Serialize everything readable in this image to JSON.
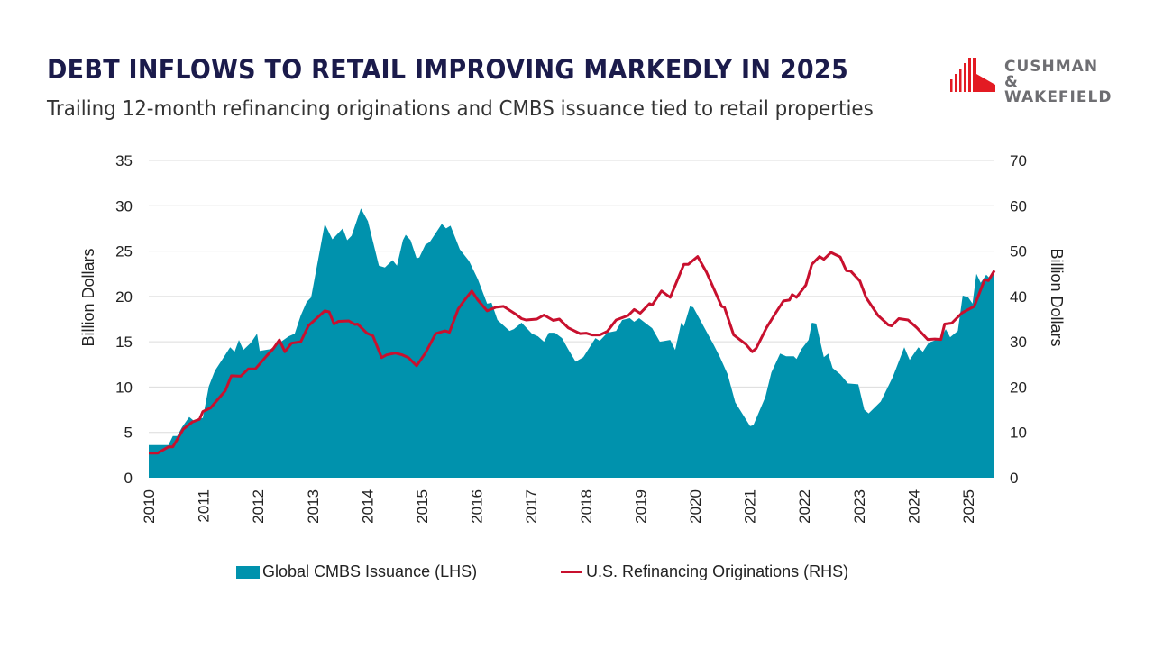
{
  "header": {
    "title": "DEBT INFLOWS TO RETAIL IMPROVING MARKEDLY IN 2025",
    "subtitle": "Trailing 12-month refinancing originations and CMBS issuance tied to retail properties",
    "logo_text": "CUSHMAN & WAKEFIELD",
    "logo_line1": "CUSHMAN &",
    "logo_line2": "WAKEFIELD"
  },
  "colors": {
    "area": "#0092ad",
    "line": "#c8102e",
    "title": "#1b1b4b",
    "grid": "#dcdcdc"
  },
  "chart_data": {
    "type": "area+line",
    "title": "DEBT INFLOWS TO RETAIL IMPROVING MARKEDLY IN 2025",
    "subtitle": "Trailing 12-month refinancing originations and CMBS issuance tied to retail properties",
    "xlabel": "",
    "ylabel_left": "Billion Dollars",
    "ylabel_right": "Billion Dollars",
    "x_ticks": [
      "2010",
      "2011",
      "2012",
      "2013",
      "2014",
      "2015",
      "2016",
      "2017",
      "2018",
      "2019",
      "2020",
      "2021",
      "2022",
      "2023",
      "2024",
      "2025"
    ],
    "xlim": [
      2010,
      2025.47
    ],
    "ylim_left": [
      0,
      35
    ],
    "ylim_right": [
      0,
      70
    ],
    "y_ticks_left": [
      "0",
      "5",
      "10",
      "15",
      "20",
      "25",
      "30",
      "35"
    ],
    "y_ticks_right": [
      "0",
      "10",
      "20",
      "30",
      "40",
      "50",
      "60",
      "70"
    ],
    "grid": true,
    "legend_position": "bottom",
    "series": [
      {
        "name": "Global CMBS Issuance (LHS)",
        "type": "area",
        "axis": "left",
        "points": [
          [
            2010.02,
            3.6
          ],
          [
            2010.36,
            3.6
          ],
          [
            2010.44,
            4.6
          ],
          [
            2010.52,
            4.6
          ],
          [
            2010.61,
            5.6
          ],
          [
            2010.74,
            6.7
          ],
          [
            2010.82,
            6.3
          ],
          [
            2010.99,
            6.6
          ],
          [
            2011.1,
            10.1
          ],
          [
            2011.21,
            11.8
          ],
          [
            2011.35,
            13.1
          ],
          [
            2011.49,
            14.4
          ],
          [
            2011.57,
            13.9
          ],
          [
            2011.65,
            15.2
          ],
          [
            2011.73,
            14.1
          ],
          [
            2011.87,
            14.9
          ],
          [
            2011.98,
            15.9
          ],
          [
            2012.03,
            14.0
          ],
          [
            2012.23,
            14.2
          ],
          [
            2012.56,
            15.6
          ],
          [
            2012.67,
            15.9
          ],
          [
            2012.78,
            17.9
          ],
          [
            2012.89,
            19.4
          ],
          [
            2012.97,
            19.9
          ],
          [
            2013.22,
            28.0
          ],
          [
            2013.36,
            26.3
          ],
          [
            2013.55,
            27.5
          ],
          [
            2013.63,
            26.2
          ],
          [
            2013.71,
            26.7
          ],
          [
            2013.88,
            29.7
          ],
          [
            2014.01,
            28.3
          ],
          [
            2014.21,
            23.4
          ],
          [
            2014.32,
            23.2
          ],
          [
            2014.46,
            24.0
          ],
          [
            2014.54,
            23.4
          ],
          [
            2014.65,
            26.2
          ],
          [
            2014.7,
            26.8
          ],
          [
            2014.79,
            26.2
          ],
          [
            2014.9,
            24.2
          ],
          [
            2014.95,
            24.3
          ],
          [
            2015.06,
            25.7
          ],
          [
            2015.14,
            26.0
          ],
          [
            2015.36,
            28.0
          ],
          [
            2015.44,
            27.5
          ],
          [
            2015.52,
            27.8
          ],
          [
            2015.69,
            25.2
          ],
          [
            2015.86,
            23.9
          ],
          [
            2016.02,
            21.9
          ],
          [
            2016.19,
            19.2
          ],
          [
            2016.27,
            19.3
          ],
          [
            2016.38,
            17.4
          ],
          [
            2016.6,
            16.2
          ],
          [
            2016.68,
            16.4
          ],
          [
            2016.82,
            17.1
          ],
          [
            2017.01,
            15.9
          ],
          [
            2017.12,
            15.6
          ],
          [
            2017.23,
            15.0
          ],
          [
            2017.32,
            16.0
          ],
          [
            2017.43,
            16.0
          ],
          [
            2017.56,
            15.4
          ],
          [
            2017.67,
            14.2
          ],
          [
            2017.81,
            12.8
          ],
          [
            2017.95,
            13.3
          ],
          [
            2018.17,
            15.4
          ],
          [
            2018.25,
            15.1
          ],
          [
            2018.39,
            16.0
          ],
          [
            2018.55,
            16.2
          ],
          [
            2018.66,
            17.4
          ],
          [
            2018.8,
            17.6
          ],
          [
            2018.88,
            17.2
          ],
          [
            2018.97,
            17.6
          ],
          [
            2019.21,
            16.5
          ],
          [
            2019.35,
            15.0
          ],
          [
            2019.54,
            15.2
          ],
          [
            2019.63,
            14.1
          ],
          [
            2019.74,
            17.1
          ],
          [
            2019.79,
            16.7
          ],
          [
            2019.9,
            18.9
          ],
          [
            2019.96,
            18.8
          ],
          [
            2020.34,
            14.6
          ],
          [
            2020.45,
            13.3
          ],
          [
            2020.59,
            11.4
          ],
          [
            2020.73,
            8.3
          ],
          [
            2021.0,
            5.7
          ],
          [
            2021.06,
            5.8
          ],
          [
            2021.28,
            8.9
          ],
          [
            2021.39,
            11.6
          ],
          [
            2021.55,
            13.7
          ],
          [
            2021.66,
            13.4
          ],
          [
            2021.8,
            13.4
          ],
          [
            2021.85,
            13.1
          ],
          [
            2021.94,
            14.2
          ],
          [
            2022.07,
            15.2
          ],
          [
            2022.13,
            17.1
          ],
          [
            2022.21,
            17.0
          ],
          [
            2022.35,
            13.3
          ],
          [
            2022.43,
            13.7
          ],
          [
            2022.51,
            12.1
          ],
          [
            2022.65,
            11.4
          ],
          [
            2022.79,
            10.4
          ],
          [
            2022.98,
            10.3
          ],
          [
            2023.09,
            7.5
          ],
          [
            2023.17,
            7.1
          ],
          [
            2023.39,
            8.4
          ],
          [
            2023.61,
            11.1
          ],
          [
            2023.82,
            14.4
          ],
          [
            2023.92,
            13.0
          ],
          [
            2024.08,
            14.4
          ],
          [
            2024.16,
            13.9
          ],
          [
            2024.27,
            14.9
          ],
          [
            2024.49,
            15.4
          ],
          [
            2024.58,
            16.4
          ],
          [
            2024.66,
            15.5
          ],
          [
            2024.8,
            16.2
          ],
          [
            2024.89,
            20.1
          ],
          [
            2024.99,
            19.9
          ],
          [
            2025.07,
            19.2
          ],
          [
            2025.14,
            22.5
          ],
          [
            2025.22,
            21.5
          ],
          [
            2025.32,
            22.4
          ],
          [
            2025.4,
            21.9
          ],
          [
            2025.47,
            22.7
          ]
        ]
      },
      {
        "name": "U.S. Refinancing Originations (RHS)",
        "type": "line",
        "axis": "right",
        "points": [
          [
            2010.0,
            5.4
          ],
          [
            2010.16,
            5.4
          ],
          [
            2010.36,
            6.8
          ],
          [
            2010.44,
            6.8
          ],
          [
            2010.63,
            10.7
          ],
          [
            2010.8,
            12.3
          ],
          [
            2010.93,
            12.9
          ],
          [
            2010.99,
            14.6
          ],
          [
            2011.13,
            15.4
          ],
          [
            2011.4,
            19.2
          ],
          [
            2011.51,
            22.5
          ],
          [
            2011.68,
            22.4
          ],
          [
            2011.82,
            24.0
          ],
          [
            2011.95,
            24.0
          ],
          [
            2012.15,
            26.8
          ],
          [
            2012.28,
            28.5
          ],
          [
            2012.39,
            30.4
          ],
          [
            2012.49,
            27.8
          ],
          [
            2012.61,
            29.7
          ],
          [
            2012.78,
            30.0
          ],
          [
            2012.92,
            33.5
          ],
          [
            2013.22,
            36.8
          ],
          [
            2013.3,
            36.6
          ],
          [
            2013.39,
            33.9
          ],
          [
            2013.47,
            34.5
          ],
          [
            2013.66,
            34.6
          ],
          [
            2013.77,
            33.8
          ],
          [
            2013.82,
            33.9
          ],
          [
            2013.99,
            31.9
          ],
          [
            2014.1,
            31.3
          ],
          [
            2014.26,
            26.5
          ],
          [
            2014.35,
            27.1
          ],
          [
            2014.51,
            27.5
          ],
          [
            2014.64,
            27.1
          ],
          [
            2014.75,
            26.5
          ],
          [
            2014.9,
            24.7
          ],
          [
            2015.06,
            27.5
          ],
          [
            2015.25,
            31.8
          ],
          [
            2015.42,
            32.4
          ],
          [
            2015.5,
            32.1
          ],
          [
            2015.66,
            37.2
          ],
          [
            2015.77,
            39.1
          ],
          [
            2015.91,
            41.2
          ],
          [
            2016.02,
            39.2
          ],
          [
            2016.19,
            36.8
          ],
          [
            2016.35,
            37.6
          ],
          [
            2016.49,
            37.8
          ],
          [
            2016.71,
            36.1
          ],
          [
            2016.82,
            35.1
          ],
          [
            2016.9,
            34.8
          ],
          [
            2017.1,
            35.0
          ],
          [
            2017.23,
            35.9
          ],
          [
            2017.4,
            34.7
          ],
          [
            2017.51,
            35.0
          ],
          [
            2017.67,
            33.1
          ],
          [
            2017.89,
            31.8
          ],
          [
            2018.0,
            31.9
          ],
          [
            2018.11,
            31.5
          ],
          [
            2018.25,
            31.5
          ],
          [
            2018.39,
            32.3
          ],
          [
            2018.55,
            34.8
          ],
          [
            2018.77,
            35.8
          ],
          [
            2018.88,
            37.1
          ],
          [
            2018.99,
            36.3
          ],
          [
            2019.16,
            38.4
          ],
          [
            2019.21,
            38.1
          ],
          [
            2019.38,
            41.2
          ],
          [
            2019.54,
            39.8
          ],
          [
            2019.79,
            47.1
          ],
          [
            2019.87,
            47.1
          ],
          [
            2020.04,
            48.8
          ],
          [
            2020.2,
            45.4
          ],
          [
            2020.48,
            37.8
          ],
          [
            2020.53,
            37.6
          ],
          [
            2020.7,
            31.5
          ],
          [
            2020.92,
            29.5
          ],
          [
            2021.04,
            27.8
          ],
          [
            2021.11,
            28.5
          ],
          [
            2021.3,
            33.1
          ],
          [
            2021.47,
            36.4
          ],
          [
            2021.61,
            39.0
          ],
          [
            2021.72,
            39.2
          ],
          [
            2021.77,
            40.4
          ],
          [
            2021.85,
            39.8
          ],
          [
            2022.02,
            42.5
          ],
          [
            2022.13,
            47.1
          ],
          [
            2022.27,
            48.8
          ],
          [
            2022.35,
            48.2
          ],
          [
            2022.48,
            49.7
          ],
          [
            2022.65,
            48.7
          ],
          [
            2022.76,
            45.7
          ],
          [
            2022.84,
            45.6
          ],
          [
            2023.01,
            43.4
          ],
          [
            2023.12,
            39.8
          ],
          [
            2023.34,
            35.8
          ],
          [
            2023.53,
            33.7
          ],
          [
            2023.59,
            33.5
          ],
          [
            2023.72,
            35.1
          ],
          [
            2023.89,
            34.8
          ],
          [
            2024.05,
            33.1
          ],
          [
            2024.25,
            30.5
          ],
          [
            2024.38,
            30.6
          ],
          [
            2024.49,
            30.5
          ],
          [
            2024.56,
            33.9
          ],
          [
            2024.69,
            34.1
          ],
          [
            2024.88,
            36.4
          ],
          [
            2025.1,
            37.8
          ],
          [
            2025.29,
            43.7
          ],
          [
            2025.36,
            43.5
          ],
          [
            2025.47,
            45.7
          ]
        ]
      }
    ]
  }
}
